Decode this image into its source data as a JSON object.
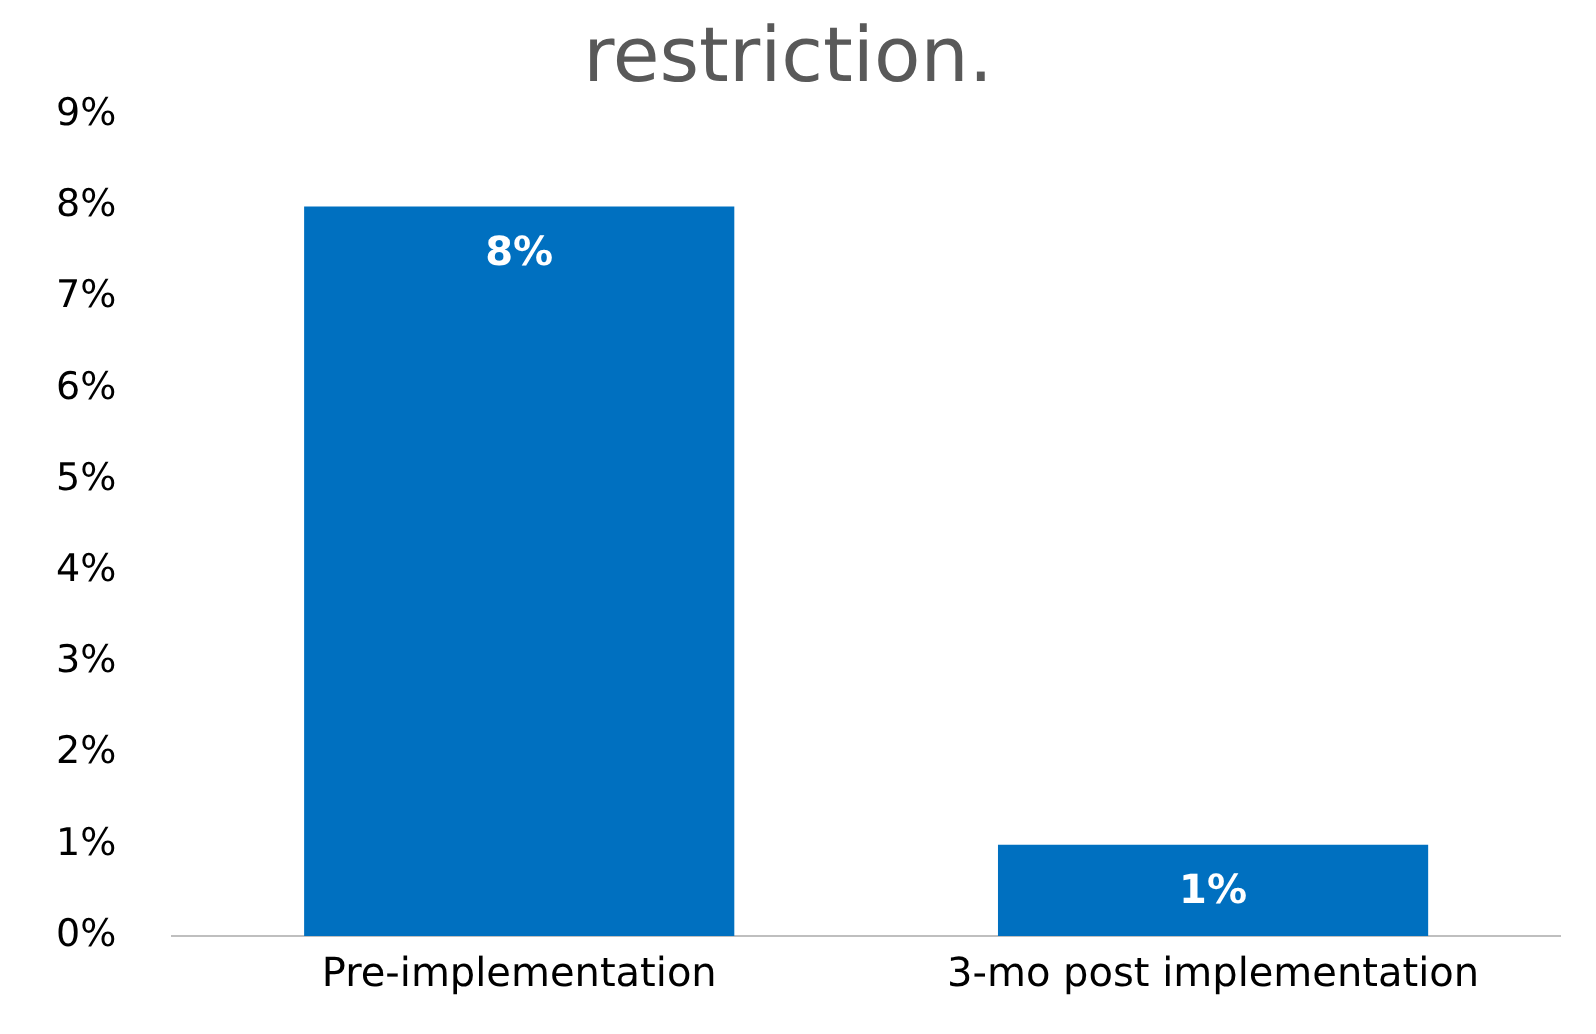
{
  "chart_data": {
    "type": "bar",
    "title": "restriction.",
    "categories": [
      "Pre-implementation",
      "3-mo post implementation"
    ],
    "values": [
      8,
      1
    ],
    "color": "#0070c0",
    "value_labels": [
      "8%",
      "1%"
    ],
    "ylim": [
      0,
      9
    ],
    "yticks": [
      {
        "value": 0,
        "label": "0%"
      },
      {
        "value": 1,
        "label": "1%"
      },
      {
        "value": 2,
        "label": "2%"
      },
      {
        "value": 3,
        "label": "3%"
      },
      {
        "value": 4,
        "label": "4%"
      },
      {
        "value": 5,
        "label": "5%"
      },
      {
        "value": 6,
        "label": "6%"
      },
      {
        "value": 7,
        "label": "7%"
      },
      {
        "value": 8,
        "label": "8%"
      },
      {
        "value": 9,
        "label": "9%"
      }
    ],
    "grid": false,
    "legend": false
  }
}
